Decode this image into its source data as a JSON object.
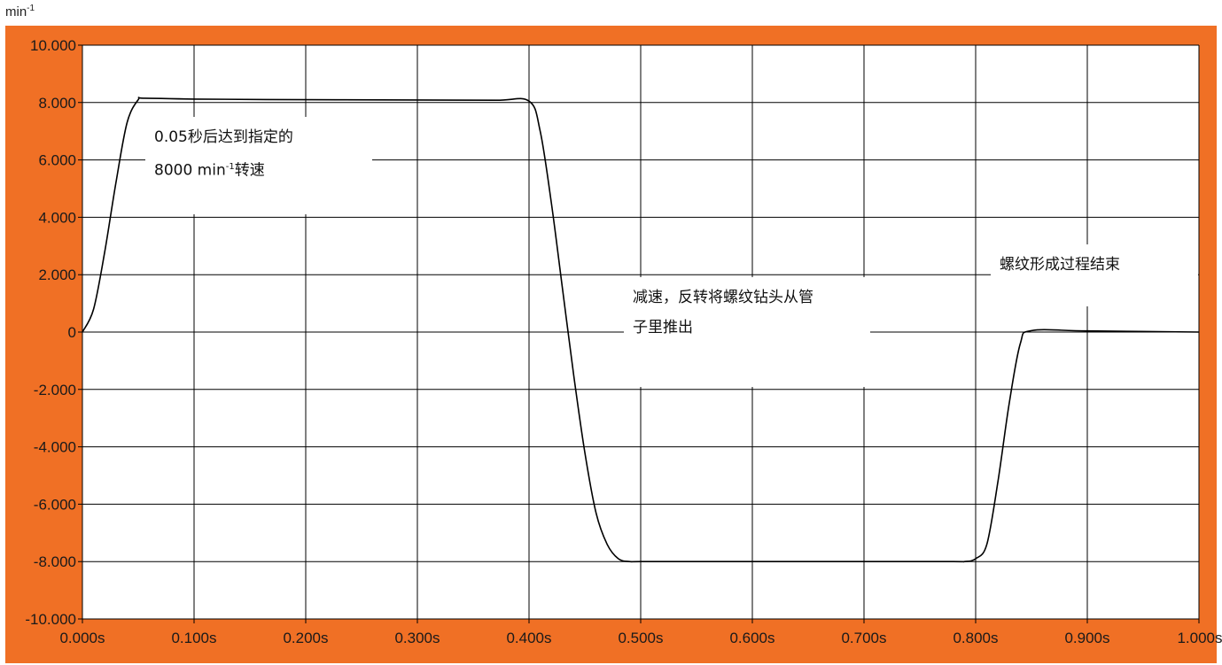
{
  "unit_label": "min",
  "unit_exp": "-1",
  "colors": {
    "frame": "#f07025",
    "plot_bg": "#ffffff",
    "grid": "#000000",
    "curve": "#000000"
  },
  "chart_data": {
    "type": "line",
    "title": "",
    "xlabel": "",
    "ylabel": "min-1",
    "xlim": [
      0,
      1.0
    ],
    "ylim": [
      -10000,
      10000
    ],
    "grid": true,
    "x_tick_labels": [
      "0.000s",
      "0.100s",
      "0.200s",
      "0.300s",
      "0.400s",
      "0.500s",
      "0.600s",
      "0.700s",
      "0.800s",
      "0.900s",
      "1.000s"
    ],
    "y_tick_labels": [
      "10.000",
      "8.000",
      "6.000",
      "4.000",
      "2.000",
      "0",
      "-2.000",
      "-4.000",
      "-6.000",
      "-8.000",
      "-10.000"
    ],
    "series": [
      {
        "x": [
          0.0,
          0.01,
          0.02,
          0.03,
          0.04,
          0.05,
          0.055,
          0.1,
          0.2,
          0.3,
          0.37,
          0.4,
          0.41,
          0.42,
          0.43,
          0.44,
          0.45,
          0.46,
          0.47,
          0.48,
          0.49,
          0.5,
          0.55,
          0.6,
          0.7,
          0.78,
          0.79,
          0.8,
          0.81,
          0.82,
          0.83,
          0.84,
          0.85,
          0.9,
          1.0
        ],
        "y": [
          0,
          800,
          2800,
          5200,
          7300,
          8100,
          8150,
          8120,
          8100,
          8090,
          8080,
          8050,
          7000,
          4500,
          1500,
          -1500,
          -4200,
          -6300,
          -7400,
          -7900,
          -8000,
          -8000,
          -8000,
          -8000,
          -8000,
          -8000,
          -8000,
          -7900,
          -7400,
          -5200,
          -2500,
          -400,
          50,
          40,
          0
        ]
      }
    ],
    "annotations": [
      {
        "lines": [
          "0.05秒后达到指定的",
          "8000 min",
          "转速"
        ],
        "sup": "-1"
      },
      {
        "lines": [
          "减速，反转将螺纹钻头从管",
          "子里推出"
        ]
      },
      {
        "lines": [
          "螺纹形成过程结束"
        ]
      }
    ]
  }
}
